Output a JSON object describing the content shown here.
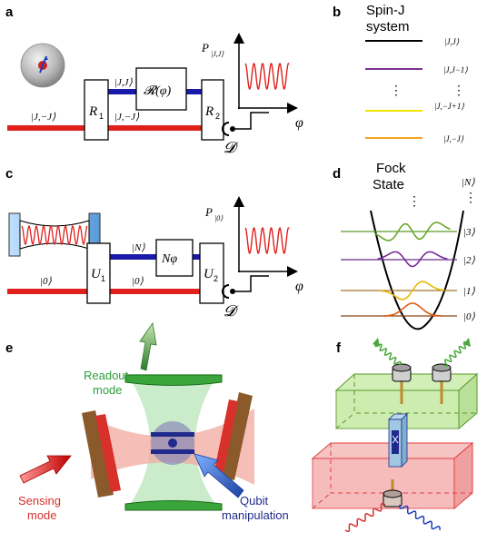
{
  "panels": {
    "a": {
      "label": "a",
      "lower_left": "|J,−J⟩",
      "upper_mid": "|J,J⟩",
      "lower_mid": "|J,−J⟩",
      "gate1": "R",
      "gate1_sub": "1",
      "phase_gate": "𝓡(φ)",
      "gate2": "R",
      "gate2_sub": "2",
      "detector": "𝓓",
      "plot_ylabel": "P",
      "plot_ylabel_sub": "|J,J⟩",
      "plot_xlabel": "φ"
    },
    "b": {
      "label": "b",
      "title_line1": "Spin-J",
      "title_line2": "system",
      "levels": [
        {
          "ket": "|J,J⟩",
          "color": "#000000"
        },
        {
          "ket": "|J,J−1⟩",
          "color": "#7b3294"
        },
        {
          "ket": "⋮",
          "color": ""
        },
        {
          "ket": "|J,−J+1⟩",
          "color": "#f2e600"
        },
        {
          "ket": "|J,−J⟩",
          "color": "#f5a623"
        }
      ],
      "dots_left": "⋮"
    },
    "c": {
      "label": "c",
      "upper_mid": "|N⟩",
      "lower_left": "|0⟩",
      "lower_mid": "|0⟩",
      "gate1": "U",
      "gate1_sub": "1",
      "phase_gate": "Nφ",
      "gate2": "U",
      "gate2_sub": "2",
      "detector": "𝓓",
      "plot_ylabel": "P",
      "plot_ylabel_sub": "|0⟩",
      "plot_xlabel": "φ"
    },
    "d": {
      "label": "d",
      "title_line1": "Fock",
      "title_line2": "State",
      "kets": [
        "|N⟩",
        "⋮",
        "|3⟩",
        "|2⟩",
        "|1⟩",
        "|0⟩"
      ],
      "dots": "⋮"
    },
    "e": {
      "label": "e",
      "readout_line1": "Readout",
      "readout_line2": "mode",
      "sensing_line1": "Sensing",
      "sensing_line2": "mode",
      "qubit_line1": "Qubit",
      "qubit_line2": "manipulation"
    },
    "f": {
      "label": "f"
    }
  },
  "colors": {
    "red": "#e0201b",
    "blue": "#1a1aa8",
    "green_mode": "#2e9e3e",
    "red_mode": "#d8302a",
    "dark_blue": "#1f2a8c"
  }
}
